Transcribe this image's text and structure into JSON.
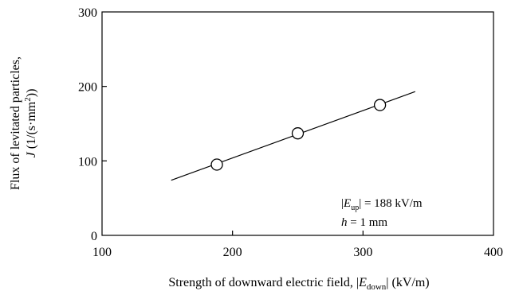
{
  "chart_data": {
    "type": "scatter",
    "x_ticks": [
      "100",
      "200",
      "300",
      "400"
    ],
    "y_ticks": [
      "0",
      "100",
      "200",
      "300"
    ],
    "xlim": [
      100,
      400
    ],
    "ylim": [
      0,
      300
    ],
    "grid": false,
    "xlabel": {
      "main": "Strength of downward electric field, |",
      "var": "E",
      "sub": "down",
      "tail": "| (kV/m)"
    },
    "ylabel": {
      "line1": "Flux of levitated particles,",
      "var": "J",
      "unit_pre": " (1/(s·mm",
      "sup": "2",
      "unit_post": "))"
    },
    "points": [
      {
        "x": 188,
        "y": 95
      },
      {
        "x": 250,
        "y": 137
      },
      {
        "x": 313,
        "y": 175
      }
    ],
    "fit_line": {
      "x1": 153,
      "y1": 74,
      "x2": 340,
      "y2": 193
    },
    "annotation": {
      "line1_pre": "|",
      "line1_var": "E",
      "line1_sub": "up",
      "line1_post": "| = 188 kV/m",
      "line2_var": "h",
      "line2_post": " = 1 mm"
    }
  }
}
